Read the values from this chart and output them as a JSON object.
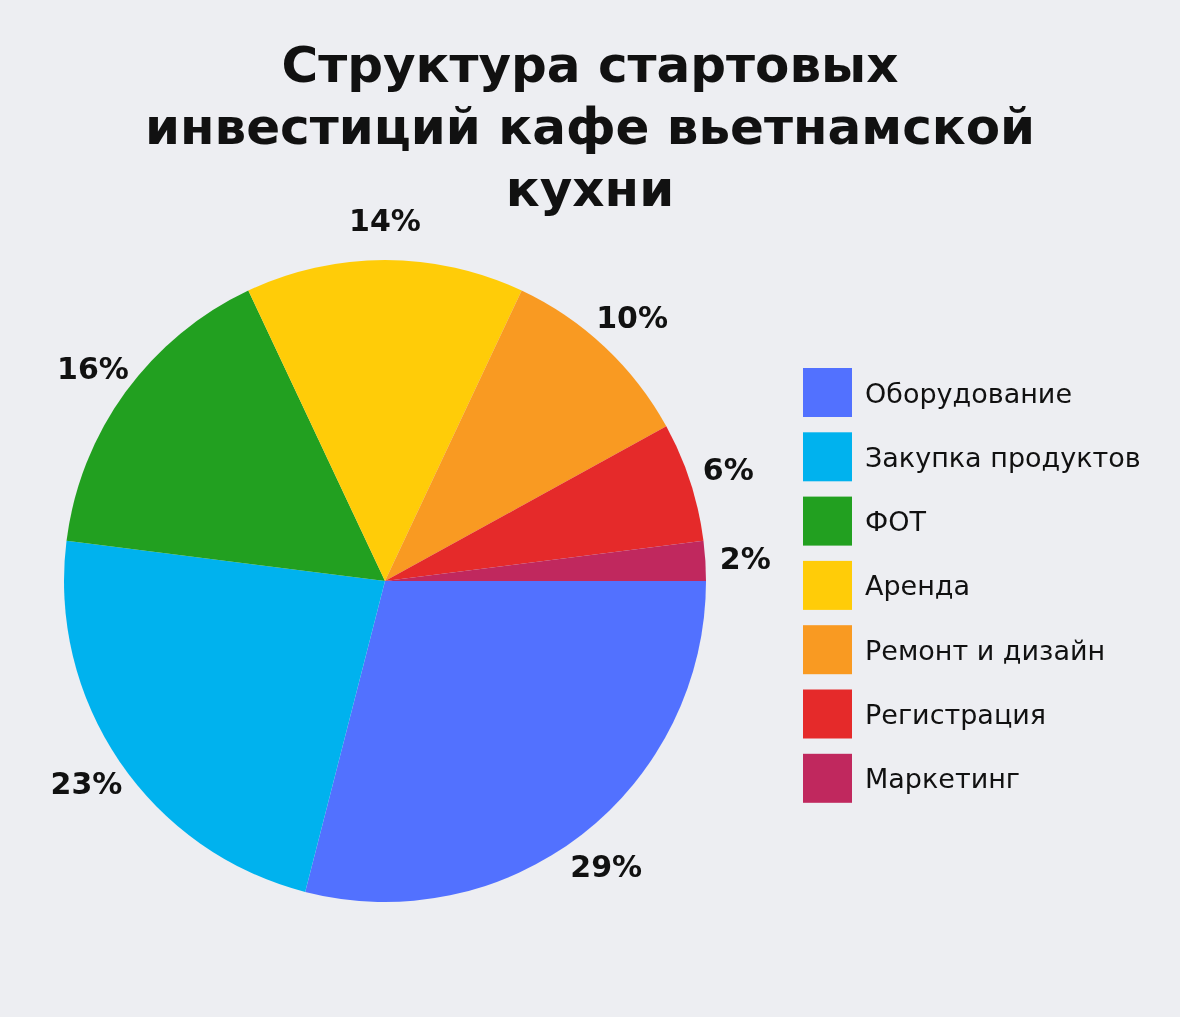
{
  "chart_data": {
    "type": "pie",
    "title": "Структура стартовых инвестиций кафе вьетнамской кухни",
    "categories": [
      "Оборудование",
      "Закупка продуктов",
      "ФОТ",
      "Аренда",
      "Ремонт и дизайн",
      "Регистрация",
      "Маркетинг"
    ],
    "values": [
      29,
      23,
      16,
      14,
      10,
      6,
      2
    ],
    "value_labels": [
      "29%",
      "23%",
      "16%",
      "14%",
      "10%",
      "6%",
      "2%"
    ],
    "colors": [
      "#5271ff",
      "#00b2ee",
      "#22a020",
      "#ffcc08",
      "#f99a22",
      "#e52a2a",
      "#c0285e"
    ],
    "legend": "right"
  }
}
